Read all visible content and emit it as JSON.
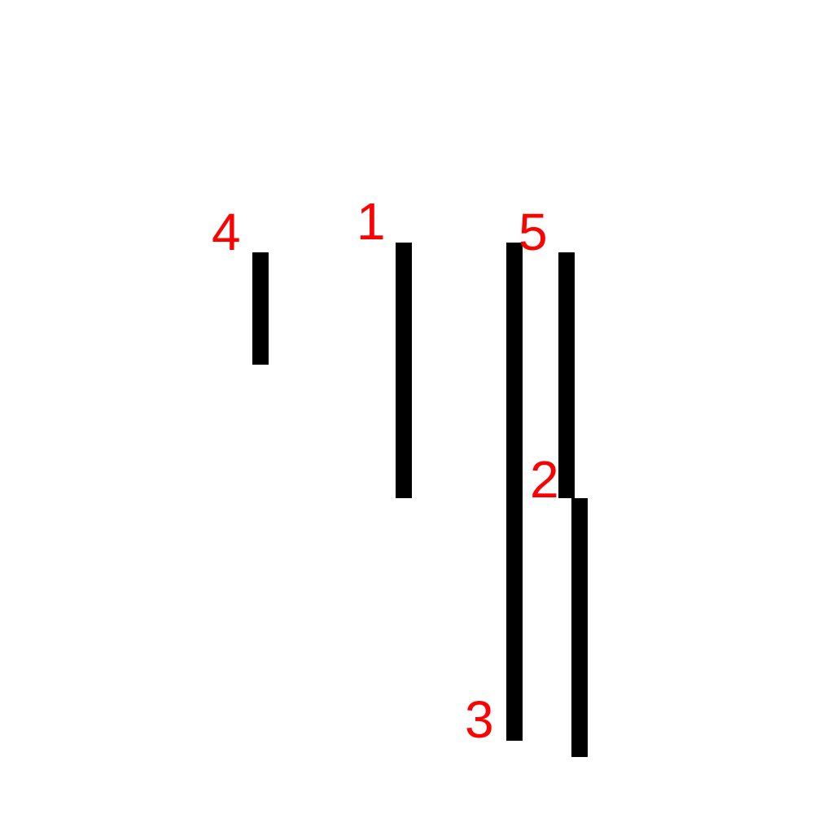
{
  "diagram": {
    "background_color": "#ffffff",
    "bar_color": "#000000",
    "label_color": "#ff0000",
    "labels": {
      "bar_4": "4",
      "bar_1": "1",
      "bar_3": "3",
      "bar_5": "5",
      "bar_2": "2"
    }
  }
}
